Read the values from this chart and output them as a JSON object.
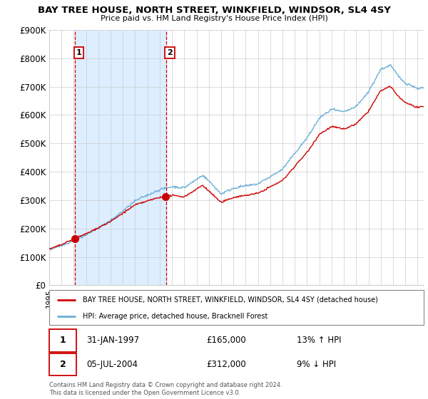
{
  "title": "BAY TREE HOUSE, NORTH STREET, WINKFIELD, WINDSOR, SL4 4SY",
  "subtitle": "Price paid vs. HM Land Registry's House Price Index (HPI)",
  "ylabel_ticks": [
    "£0",
    "£100K",
    "£200K",
    "£300K",
    "£400K",
    "£500K",
    "£600K",
    "£700K",
    "£800K",
    "£900K"
  ],
  "ytick_values": [
    0,
    100000,
    200000,
    300000,
    400000,
    500000,
    600000,
    700000,
    800000,
    900000
  ],
  "ylim": [
    0,
    900000
  ],
  "xlim_start": 1995.0,
  "xlim_end": 2025.5,
  "sale1_year": 1997.08,
  "sale1_price": 165000,
  "sale1_label": "1",
  "sale1_date": "31-JAN-1997",
  "sale1_pct": "13% ↑ HPI",
  "sale2_year": 2004.5,
  "sale2_price": 312000,
  "sale2_label": "2",
  "sale2_date": "05-JUL-2004",
  "sale2_pct": "9% ↓ HPI",
  "legend_line1": "BAY TREE HOUSE, NORTH STREET, WINKFIELD, WINDSOR, SL4 4SY (detached house)",
  "legend_line2": "HPI: Average price, detached house, Bracknell Forest",
  "footnote": "Contains HM Land Registry data © Crown copyright and database right 2024.\nThis data is licensed under the Open Government Licence v3.0.",
  "hpi_color": "#6baed6",
  "shade_color": "#ddeeff",
  "sale_color": "#cc0000",
  "background_color": "#ffffff",
  "grid_color": "#cccccc"
}
